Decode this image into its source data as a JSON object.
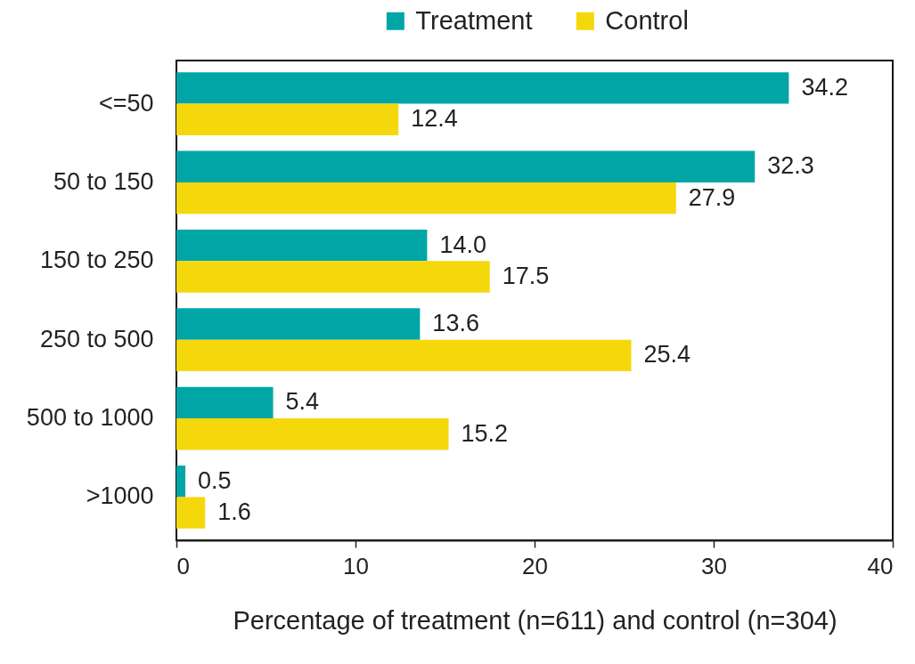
{
  "chart_data": {
    "type": "bar",
    "orientation": "horizontal",
    "categories": [
      "<=50",
      "50 to 150",
      "150 to 250",
      "250 to 500",
      "500 to 1000",
      ">1000"
    ],
    "series": [
      {
        "name": "Treatment",
        "color": "#00a6a6",
        "values": [
          34.2,
          32.3,
          14.0,
          13.6,
          5.4,
          0.5
        ],
        "value_labels": [
          "34.2",
          "32.3",
          "14.0",
          "13.6",
          "5.4",
          "0.5"
        ]
      },
      {
        "name": "Control",
        "color": "#f5d80c",
        "values": [
          12.4,
          27.9,
          17.5,
          25.4,
          15.2,
          1.6
        ],
        "value_labels": [
          "12.4",
          "27.9",
          "17.5",
          "25.4",
          "15.2",
          "1.6"
        ]
      }
    ],
    "xlabel": "Percentage of treatment (n=611) and control (n=304)",
    "xlim": [
      0,
      40
    ],
    "xticks": [
      0,
      10,
      20,
      30,
      40
    ],
    "grid": false,
    "legend": "top"
  }
}
